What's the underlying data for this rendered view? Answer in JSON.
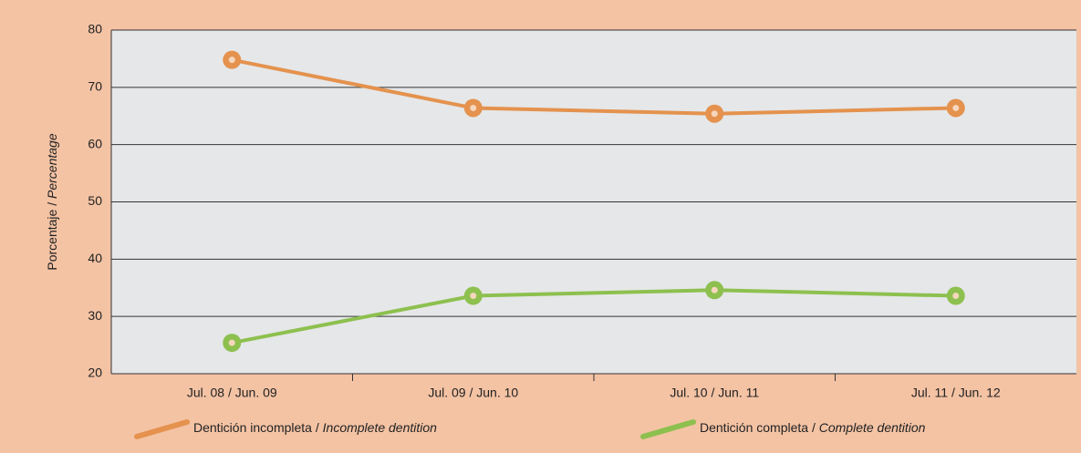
{
  "chart_data": {
    "type": "line",
    "y_label": "Porcentaje / Percentage",
    "categories": [
      "Jul. 08 / Jun. 09",
      "Jul. 09 / Jun. 10",
      "Jul. 10 / Jun. 11",
      "Jul. 11 / Jun. 12"
    ],
    "series": [
      {
        "name": "Dentición incompleta / Incomplete dentition",
        "color": "#e4924e",
        "values": [
          74.8,
          66.4,
          65.4,
          66.4
        ]
      },
      {
        "name": "Dentición completa / Complete dentition",
        "color": "#8dc04f",
        "values": [
          25.4,
          33.6,
          34.6,
          33.6
        ]
      }
    ],
    "ylim": [
      20,
      80
    ],
    "yticks": [
      20,
      30,
      40,
      50,
      60,
      70,
      80
    ],
    "grid": true,
    "legend": "bottom"
  }
}
